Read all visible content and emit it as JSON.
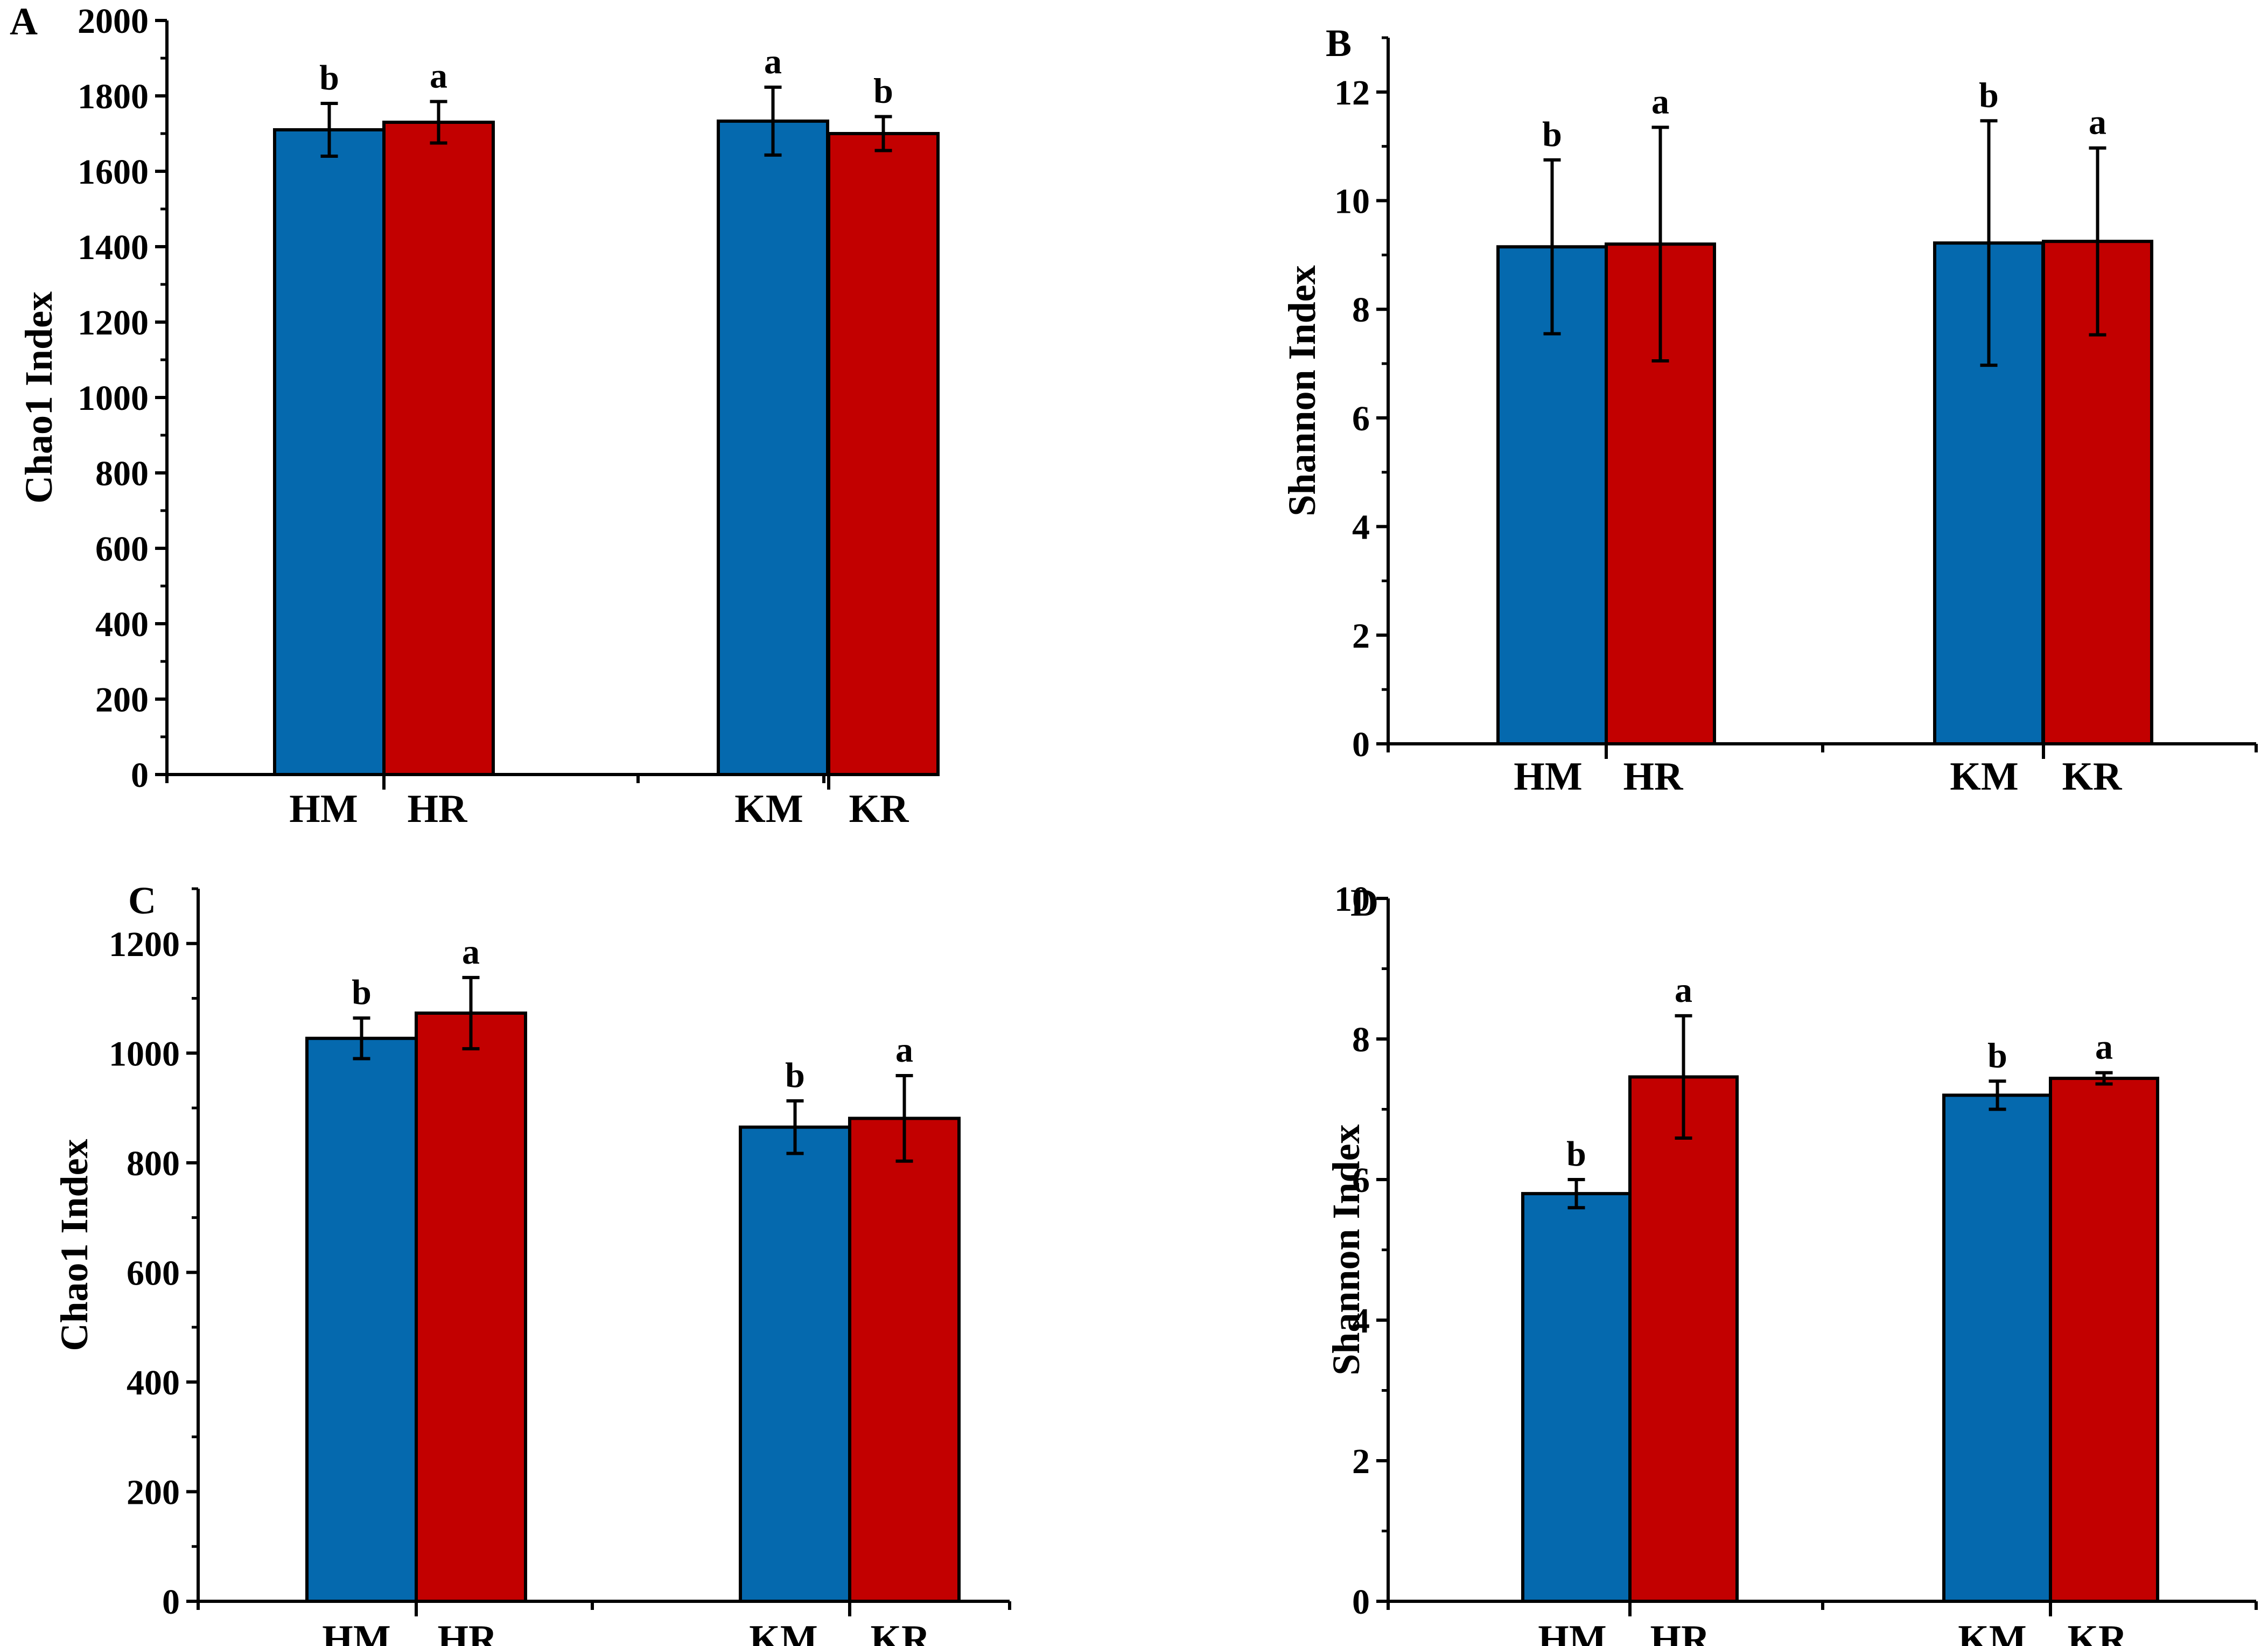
{
  "colors": {
    "bar_m": "#0569ae",
    "bar_r": "#c20000",
    "stroke": "#000000"
  },
  "chart_data": [
    {
      "panel": "A",
      "type": "bar",
      "ylabel": "Chao1 Index",
      "ylim": [
        0,
        2000
      ],
      "yticks": [
        0,
        200,
        400,
        600,
        800,
        1000,
        1200,
        1400,
        1600,
        1800,
        2000
      ],
      "categories": [
        "HM",
        "HR",
        "KM",
        "KR"
      ],
      "values": [
        1710,
        1730,
        1733,
        1700
      ],
      "errors": [
        70,
        55,
        90,
        45
      ],
      "significance": [
        "b",
        "a",
        "a",
        "b"
      ]
    },
    {
      "panel": "B",
      "type": "bar",
      "ylabel": "Shannon Index",
      "ylim": [
        0,
        13
      ],
      "yticks": [
        0,
        2,
        4,
        6,
        8,
        10,
        12
      ],
      "categories": [
        "HM",
        "HR",
        "KM",
        "KR"
      ],
      "values": [
        9.15,
        9.2,
        9.22,
        9.25
      ],
      "errors": [
        1.6,
        2.15,
        2.25,
        1.72
      ],
      "significance": [
        "b",
        "a",
        "b",
        "a"
      ]
    },
    {
      "panel": "C",
      "type": "bar",
      "ylabel": "Chao1 Index",
      "ylim": [
        0,
        1300
      ],
      "yticks": [
        0,
        200,
        400,
        600,
        800,
        1000,
        1200
      ],
      "categories": [
        "HM",
        "HR",
        "KM",
        "KR"
      ],
      "values": [
        1027,
        1073,
        865,
        881
      ],
      "errors": [
        37,
        65,
        48,
        78
      ],
      "significance": [
        "b",
        "a",
        "b",
        "a"
      ]
    },
    {
      "panel": "D",
      "type": "bar",
      "ylabel": "Shannon Index",
      "ylim": [
        0,
        10
      ],
      "yticks": [
        0,
        2,
        4,
        6,
        8,
        10
      ],
      "categories": [
        "HM",
        "HR",
        "KM",
        "KR"
      ],
      "values": [
        5.8,
        7.46,
        7.2,
        7.44
      ],
      "errors": [
        0.2,
        0.87,
        0.2,
        0.08
      ],
      "significance": [
        "b",
        "a",
        "b",
        "a"
      ]
    }
  ]
}
